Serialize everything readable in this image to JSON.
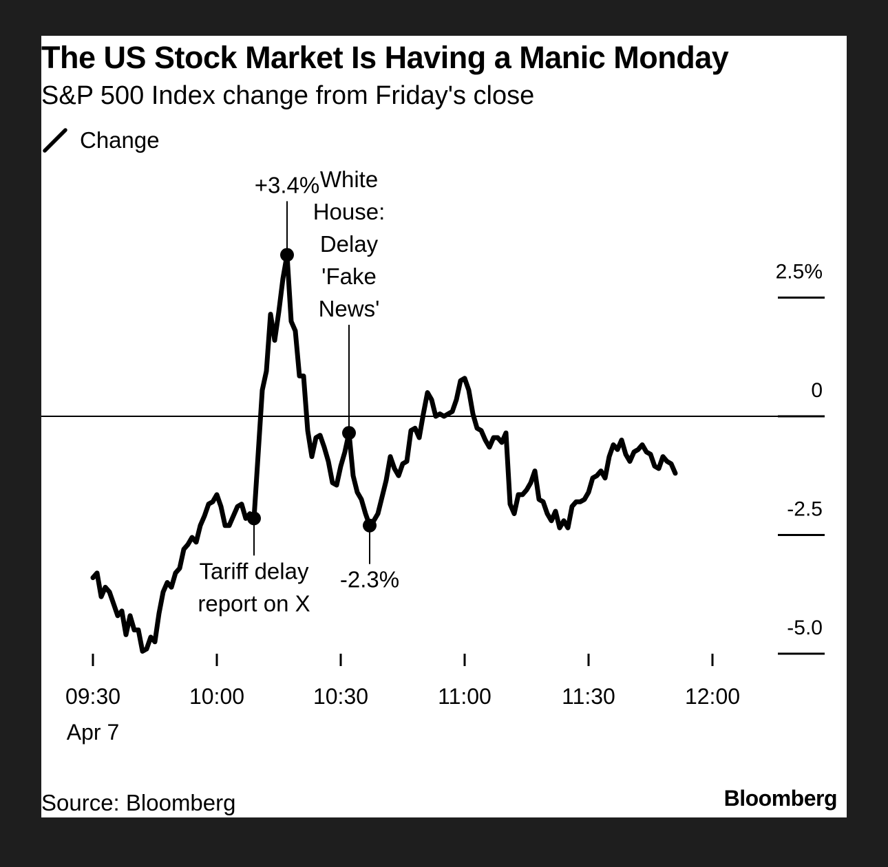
{
  "chart_data": {
    "type": "line",
    "title": "The US Stock Market Is Having a Manic Monday",
    "subtitle": "S&P 500 Index change from Friday's close",
    "legend": {
      "entries": [
        "Change"
      ],
      "placement": "top-left"
    },
    "ylim": [
      -5.0,
      4.2
    ],
    "y_ticks": [
      2.5,
      0,
      -2.5,
      -5.0
    ],
    "y_tick_labels": [
      "2.5%",
      "0",
      "-2.5",
      "-5.0"
    ],
    "x_ticks": [
      "09:30",
      "10:00",
      "10:30",
      "11:00",
      "11:30",
      "12:00"
    ],
    "x_tick_sublabel": "Apr 7",
    "x_range": [
      "09:30",
      "12:00"
    ],
    "grid": false,
    "zero_line": true,
    "series": [
      {
        "name": "Change",
        "color": "#000000",
        "points": [
          [
            "09:30",
            -3.4
          ],
          [
            "09:31",
            -3.3
          ],
          [
            "09:32",
            -3.8
          ],
          [
            "09:33",
            -3.6
          ],
          [
            "09:34",
            -3.7
          ],
          [
            "09:35",
            -3.95
          ],
          [
            "09:36",
            -4.2
          ],
          [
            "09:37",
            -4.1
          ],
          [
            "09:38",
            -4.6
          ],
          [
            "09:39",
            -4.2
          ],
          [
            "09:40",
            -4.5
          ],
          [
            "09:41",
            -4.5
          ],
          [
            "09:42",
            -4.95
          ],
          [
            "09:43",
            -4.9
          ],
          [
            "09:44",
            -4.65
          ],
          [
            "09:45",
            -4.75
          ],
          [
            "09:46",
            -4.15
          ],
          [
            "09:47",
            -3.7
          ],
          [
            "09:48",
            -3.5
          ],
          [
            "09:49",
            -3.6
          ],
          [
            "09:50",
            -3.3
          ],
          [
            "09:51",
            -3.2
          ],
          [
            "09:52",
            -2.8
          ],
          [
            "09:53",
            -2.7
          ],
          [
            "09:54",
            -2.55
          ],
          [
            "09:55",
            -2.65
          ],
          [
            "09:56",
            -2.3
          ],
          [
            "09:57",
            -2.1
          ],
          [
            "09:58",
            -1.85
          ],
          [
            "09:59",
            -1.8
          ],
          [
            "10:00",
            -1.65
          ],
          [
            "10:01",
            -1.9
          ],
          [
            "10:02",
            -2.3
          ],
          [
            "10:03",
            -2.3
          ],
          [
            "10:04",
            -2.1
          ],
          [
            "10:05",
            -1.9
          ],
          [
            "10:06",
            -1.85
          ],
          [
            "10:07",
            -2.15
          ],
          [
            "10:08",
            -2.05
          ],
          [
            "10:09",
            -2.15
          ],
          [
            "10:10",
            -0.8
          ],
          [
            "10:11",
            0.55
          ],
          [
            "10:12",
            0.95
          ],
          [
            "10:13",
            2.15
          ],
          [
            "10:14",
            1.6
          ],
          [
            "10:15",
            2.2
          ],
          [
            "10:16",
            2.9
          ],
          [
            "10:17",
            3.4
          ],
          [
            "10:18",
            2.0
          ],
          [
            "10:19",
            1.8
          ],
          [
            "10:20",
            0.85
          ],
          [
            "10:21",
            0.85
          ],
          [
            "10:22",
            -0.3
          ],
          [
            "10:23",
            -0.85
          ],
          [
            "10:24",
            -0.45
          ],
          [
            "10:25",
            -0.4
          ],
          [
            "10:26",
            -0.65
          ],
          [
            "10:27",
            -0.95
          ],
          [
            "10:28",
            -1.4
          ],
          [
            "10:29",
            -1.45
          ],
          [
            "10:30",
            -1.05
          ],
          [
            "10:31",
            -0.75
          ],
          [
            "10:32",
            -0.35
          ],
          [
            "10:33",
            -1.25
          ],
          [
            "10:34",
            -1.6
          ],
          [
            "10:35",
            -1.75
          ],
          [
            "10:36",
            -2.05
          ],
          [
            "10:37",
            -2.3
          ],
          [
            "10:38",
            -2.2
          ],
          [
            "10:39",
            -2.05
          ],
          [
            "10:40",
            -1.7
          ],
          [
            "10:41",
            -1.35
          ],
          [
            "10:42",
            -0.85
          ],
          [
            "10:43",
            -1.1
          ],
          [
            "10:44",
            -1.25
          ],
          [
            "10:45",
            -1.0
          ],
          [
            "10:46",
            -0.95
          ],
          [
            "10:47",
            -0.3
          ],
          [
            "10:48",
            -0.25
          ],
          [
            "10:49",
            -0.45
          ],
          [
            "10:50",
            0.05
          ],
          [
            "10:51",
            0.5
          ],
          [
            "10:52",
            0.35
          ],
          [
            "10:53",
            0.0
          ],
          [
            "10:54",
            0.05
          ],
          [
            "10:55",
            0.0
          ],
          [
            "10:56",
            0.05
          ],
          [
            "10:57",
            0.1
          ],
          [
            "10:58",
            0.35
          ],
          [
            "10:59",
            0.75
          ],
          [
            "11:00",
            0.8
          ],
          [
            "11:01",
            0.55
          ],
          [
            "11:02",
            0.05
          ],
          [
            "11:03",
            -0.25
          ],
          [
            "11:04",
            -0.3
          ],
          [
            "11:05",
            -0.5
          ],
          [
            "11:06",
            -0.65
          ],
          [
            "11:07",
            -0.45
          ],
          [
            "11:08",
            -0.45
          ],
          [
            "11:09",
            -0.55
          ],
          [
            "11:10",
            -0.35
          ],
          [
            "11:11",
            -1.85
          ],
          [
            "11:12",
            -2.05
          ],
          [
            "11:13",
            -1.65
          ],
          [
            "11:14",
            -1.65
          ],
          [
            "11:15",
            -1.55
          ],
          [
            "11:16",
            -1.4
          ],
          [
            "11:17",
            -1.15
          ],
          [
            "11:18",
            -1.75
          ],
          [
            "11:19",
            -1.8
          ],
          [
            "11:20",
            -2.05
          ],
          [
            "11:21",
            -2.2
          ],
          [
            "11:22",
            -2.0
          ],
          [
            "11:23",
            -2.35
          ],
          [
            "11:24",
            -2.2
          ],
          [
            "11:25",
            -2.35
          ],
          [
            "11:26",
            -1.9
          ],
          [
            "11:27",
            -1.8
          ],
          [
            "11:28",
            -1.8
          ],
          [
            "11:29",
            -1.75
          ],
          [
            "11:30",
            -1.6
          ],
          [
            "11:31",
            -1.3
          ],
          [
            "11:32",
            -1.25
          ],
          [
            "11:33",
            -1.15
          ],
          [
            "11:34",
            -1.3
          ],
          [
            "11:35",
            -0.85
          ],
          [
            "11:36",
            -0.6
          ],
          [
            "11:37",
            -0.7
          ],
          [
            "11:38",
            -0.5
          ],
          [
            "11:39",
            -0.8
          ],
          [
            "11:40",
            -0.95
          ],
          [
            "11:41",
            -0.75
          ],
          [
            "11:42",
            -0.7
          ],
          [
            "11:43",
            -0.6
          ],
          [
            "11:44",
            -0.75
          ],
          [
            "11:45",
            -0.8
          ],
          [
            "11:46",
            -1.05
          ],
          [
            "11:47",
            -1.1
          ],
          [
            "11:48",
            -0.85
          ],
          [
            "11:49",
            -0.95
          ],
          [
            "11:50",
            -1.0
          ],
          [
            "11:51",
            -1.2
          ]
        ]
      }
    ],
    "annotations": [
      {
        "x": "10:17",
        "y": 3.4,
        "text": "+3.4%",
        "position": "above"
      },
      {
        "x": "10:09",
        "y": -2.15,
        "text": "Tariff delay report on X",
        "position": "below",
        "lines": [
          "Tariff delay",
          "report on X"
        ]
      },
      {
        "x": "10:32",
        "y": -0.35,
        "text": "White House: Delay 'Fake News'",
        "position": "above",
        "lines": [
          "White",
          "House:",
          "Delay",
          "'Fake",
          "News'"
        ]
      },
      {
        "x": "10:37",
        "y": -2.3,
        "text": "-2.3%",
        "position": "below"
      }
    ],
    "source": "Source: Bloomberg"
  },
  "branding": {
    "logo_text": "Bloomberg"
  }
}
